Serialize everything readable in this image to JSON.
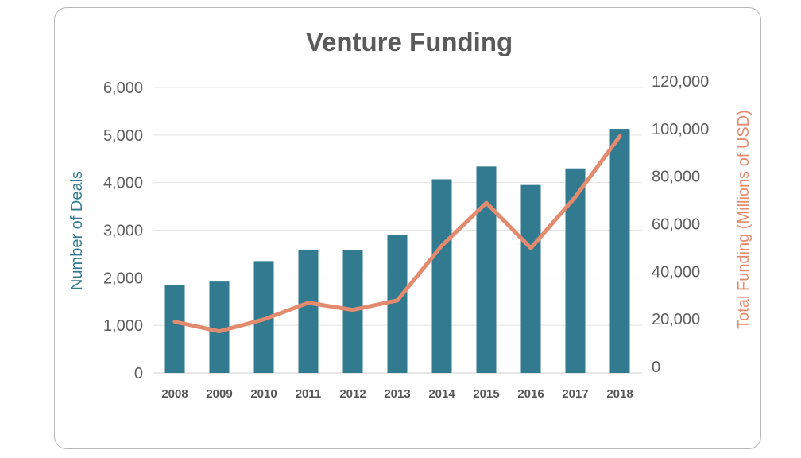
{
  "chart_data": {
    "type": "bar+line",
    "title": "Venture Funding",
    "categories": [
      "2008",
      "2009",
      "2010",
      "2011",
      "2012",
      "2013",
      "2014",
      "2015",
      "2016",
      "2017",
      "2018"
    ],
    "series": [
      {
        "name": "Number of Deals",
        "type": "bar",
        "axis": "left",
        "color": "#317a8f",
        "values": [
          1850,
          1920,
          2350,
          2580,
          2580,
          2900,
          4070,
          4340,
          3950,
          4300,
          5130
        ]
      },
      {
        "name": "Total Funding (Millions of USD)",
        "type": "line",
        "axis": "right",
        "color": "#e48a6e",
        "values": [
          21500,
          17500,
          22500,
          29500,
          26500,
          30500,
          53500,
          71500,
          52500,
          74000,
          99500
        ]
      }
    ],
    "y_left": {
      "label": "Number of Deals",
      "range": [
        0,
        6000
      ],
      "ticks": [
        "0",
        "1,000",
        "2,000",
        "3,000",
        "4,000",
        "5,000",
        "6,000"
      ],
      "color": "#317a8f"
    },
    "y_right": {
      "label": "Total Funding (Millions of USD)",
      "range": [
        0,
        120000
      ],
      "ticks": [
        "0",
        "20,000",
        "40,000",
        "60,000",
        "80,000",
        "100,000",
        "120,000"
      ],
      "color": "#e48a6e"
    },
    "grid": true,
    "legend": "none"
  }
}
